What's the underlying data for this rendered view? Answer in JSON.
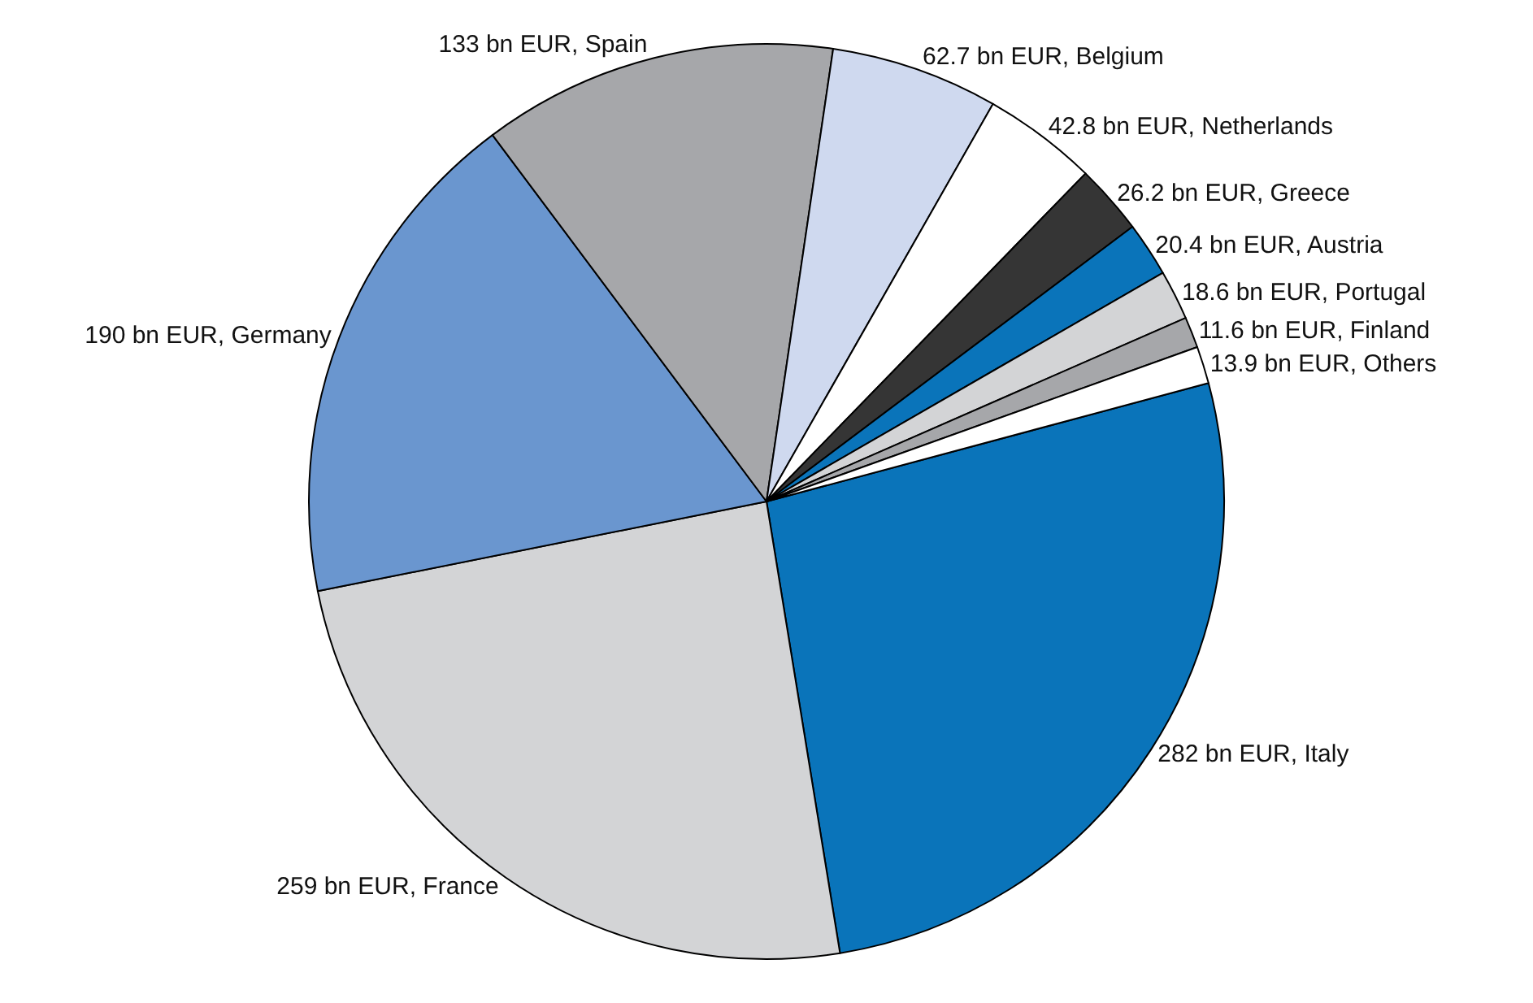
{
  "chart_data": {
    "type": "pie",
    "categories": [
      "282 bn EUR, Italy",
      "259 bn EUR, France",
      "190 bn EUR, Germany",
      "133 bn EUR, Spain",
      "62.7 bn EUR, Belgium",
      "42.8 bn EUR, Netherlands",
      "26.2 bn EUR, Greece",
      "20.4 bn EUR, Austria",
      "18.6 bn EUR, Portugal",
      "11.6 bn EUR, Finland",
      "13.9 bn EUR, Others"
    ],
    "values": [
      282,
      259,
      190,
      133,
      62.7,
      42.8,
      26.2,
      20.4,
      18.6,
      11.6,
      13.9
    ],
    "colors": [
      "#0a74ba",
      "#d3d4d6",
      "#6a96cf",
      "#a6a7aa",
      "#cfd9ef",
      "#ffffff",
      "#353535",
      "#0a74ba",
      "#d3d4d6",
      "#a6a7aa",
      "#ffffff"
    ],
    "legend": false
  }
}
